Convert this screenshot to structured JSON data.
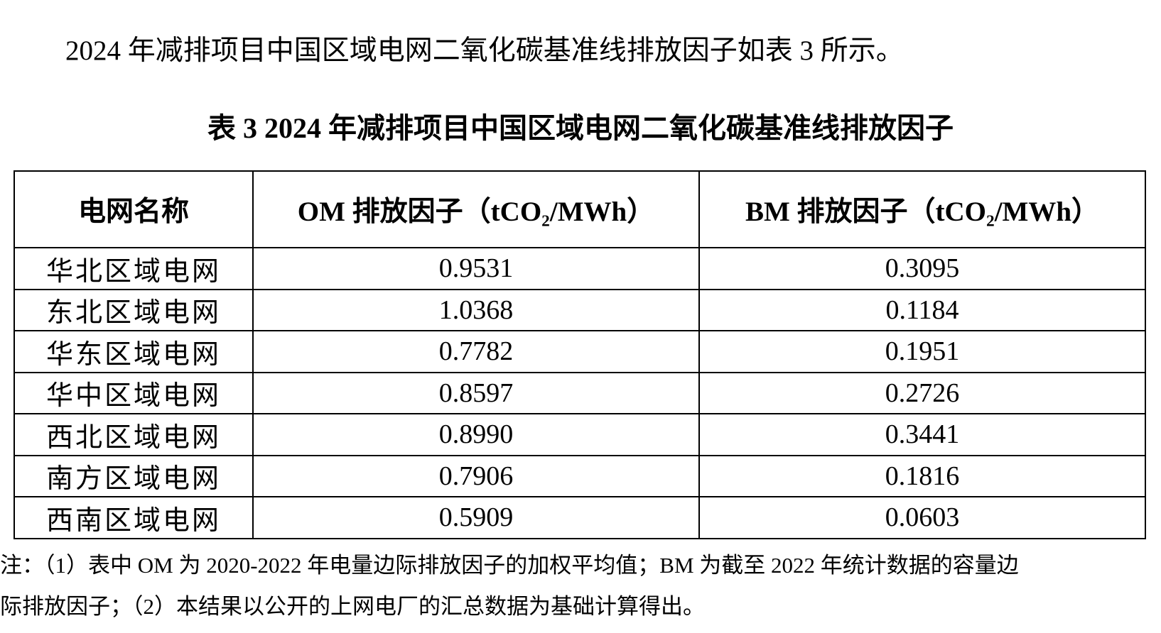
{
  "intro": "2024 年减排项目中国区域电网二氧化碳基准线排放因子如表 3 所示。",
  "table": {
    "caption": "表 3 2024 年减排项目中国区域电网二氧化碳基准线排放因子",
    "header": [
      "电网名称",
      "OM 排放因子（tCO₂/MWh）",
      "BM 排放因子（tCO₂/MWh）"
    ],
    "rows": [
      [
        "华北区域电网",
        "0.9531",
        "0.3095"
      ],
      [
        "东北区域电网",
        "1.0368",
        "0.1184"
      ],
      [
        "华东区域电网",
        "0.7782",
        "0.1951"
      ],
      [
        "华中区域电网",
        "0.8597",
        "0.2726"
      ],
      [
        "西北区域电网",
        "0.8990",
        "0.3441"
      ],
      [
        "南方区域电网",
        "0.7906",
        "0.1816"
      ],
      [
        "西南区域电网",
        "0.5909",
        "0.0603"
      ]
    ]
  },
  "note": {
    "lines": [
      "注：（1）表中 OM 为 2020-2022 年电量边际排放因子的加权平均值；BM 为截至 2022 年统计数据的容量边",
      "际排放因子；（2）本结果以公开的上网电厂的汇总数据为基础计算得出。"
    ]
  }
}
